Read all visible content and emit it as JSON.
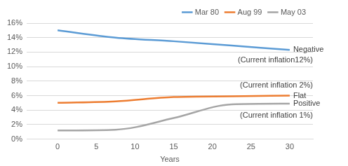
{
  "chart_data": {
    "type": "line",
    "x": [
      0,
      7.5,
      15,
      22.5,
      30
    ],
    "series": [
      {
        "name": "Mar 80",
        "color": "#5B9BD5",
        "values": [
          15.0,
          14.0,
          13.5,
          12.9,
          12.3
        ],
        "annotation": "Negative",
        "note": "(Current inflation12%)"
      },
      {
        "name": "Aug 99",
        "color": "#ED7D31",
        "values": [
          5.0,
          5.2,
          5.8,
          5.9,
          6.0
        ],
        "annotation": "Flat",
        "note": "(Current inflation 2%)"
      },
      {
        "name": "May 03",
        "color": "#A5A5A5",
        "values": [
          1.2,
          1.3,
          2.9,
          4.8,
          4.9
        ],
        "annotation": "Positive",
        "note": "(Current inflation 1%)"
      }
    ],
    "x_label": "Years",
    "xlim": [
      -4,
      33
    ],
    "xticks": [
      0,
      5,
      10,
      15,
      20,
      25,
      30
    ],
    "ylim": [
      0,
      16
    ],
    "yticks": [
      {
        "value": 0,
        "label": "0%"
      },
      {
        "value": 2,
        "label": "2%"
      },
      {
        "value": 4,
        "label": "4%"
      },
      {
        "value": 6,
        "label": "6%"
      },
      {
        "value": 8,
        "label": "8%"
      },
      {
        "value": 10,
        "label": "10%"
      },
      {
        "value": 12,
        "label": "12%"
      },
      {
        "value": 14,
        "label": "14%"
      },
      {
        "value": 16,
        "label": "16%"
      }
    ],
    "grid": true,
    "legend": "top right"
  }
}
